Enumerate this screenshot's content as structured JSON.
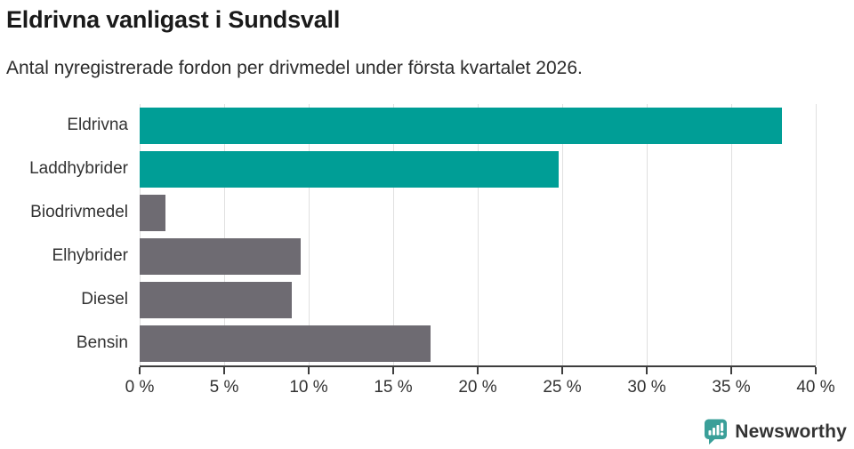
{
  "chart_data": {
    "type": "bar",
    "orientation": "horizontal",
    "title": "Eldrivna vanligast i Sundsvall",
    "subtitle": "Antal nyregistrerade fordon per drivmedel under första kvartalet 2026.",
    "categories": [
      "Eldrivna",
      "Laddhybrider",
      "Biodrivmedel",
      "Elhybrider",
      "Diesel",
      "Bensin"
    ],
    "values": [
      38.0,
      24.8,
      1.5,
      9.5,
      9.0,
      17.2
    ],
    "unit": "%",
    "bar_colors": [
      "#009e96",
      "#009e96",
      "#6e6b72",
      "#6e6b72",
      "#6e6b72",
      "#6e6b72"
    ],
    "xlim": [
      0,
      40
    ],
    "x_ticks": [
      "0 %",
      "5 %",
      "10 %",
      "15 %",
      "20 %",
      "25 %",
      "30 %",
      "35 %",
      "40 %"
    ],
    "grid": "vertical",
    "legend": "none"
  },
  "colors": {
    "accent_teal": "#009e96",
    "neutral_gray": "#6e6b72",
    "axis": "#3d3d3d",
    "gridline": "#e0e0e0",
    "logo_teal": "#3a9f99",
    "logo_text_teal": "#2f9a94"
  },
  "footer": {
    "logo_text": "Newsworthy",
    "logo_icon": "speech-bubble-bar-chart-icon"
  }
}
